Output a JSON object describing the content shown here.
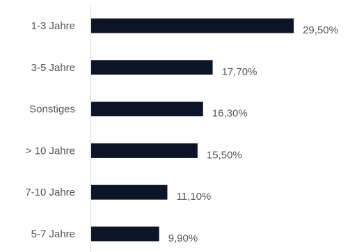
{
  "chart_data": {
    "type": "bar",
    "orientation": "horizontal",
    "categories": [
      "1-3 Jahre",
      "3-5 Jahre",
      "Sonstiges",
      "> 10 Jahre",
      "7-10 Jahre",
      "5-7 Jahre"
    ],
    "values": [
      29.5,
      17.7,
      16.3,
      15.5,
      11.1,
      9.9
    ],
    "value_labels": [
      "29,50%",
      "17,70%",
      "16,30%",
      "15,50%",
      "11,10%",
      "9,90%"
    ],
    "xlim": [
      0,
      30
    ],
    "grid": false,
    "legend": "none",
    "colors": {
      "bar": "#0c1428",
      "axis": "#d0d0d0",
      "label": "#555555",
      "value_label": "#555555"
    }
  }
}
